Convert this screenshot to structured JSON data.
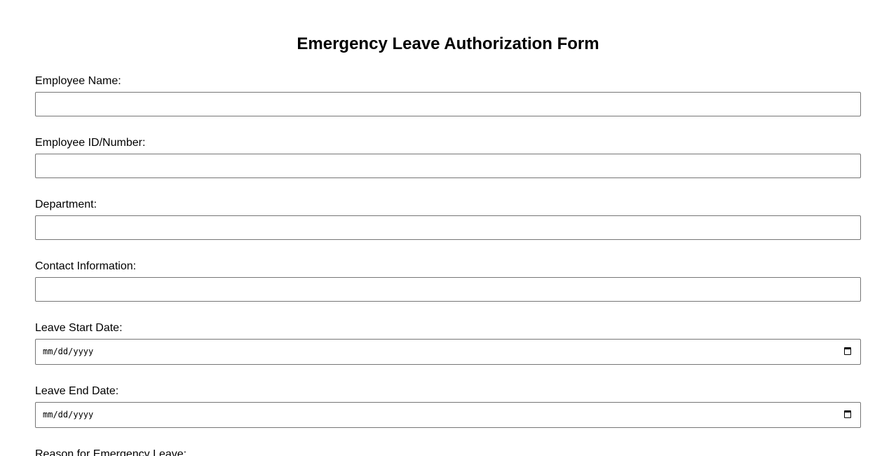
{
  "title": "Emergency Leave Authorization Form",
  "fields": [
    {
      "label": "Employee Name:",
      "type": "text",
      "value": ""
    },
    {
      "label": "Employee ID/Number:",
      "type": "text",
      "value": ""
    },
    {
      "label": "Department:",
      "type": "text",
      "value": ""
    },
    {
      "label": "Contact Information:",
      "type": "text",
      "value": ""
    },
    {
      "label": "Leave Start Date:",
      "type": "date",
      "placeholder": "mm/dd/yyyy",
      "icon": "calendar-icon"
    },
    {
      "label": "Leave End Date:",
      "type": "date",
      "placeholder": "mm/dd/yyyy",
      "icon": "calendar-icon"
    },
    {
      "label": "Reason for Emergency Leave:"
    }
  ]
}
